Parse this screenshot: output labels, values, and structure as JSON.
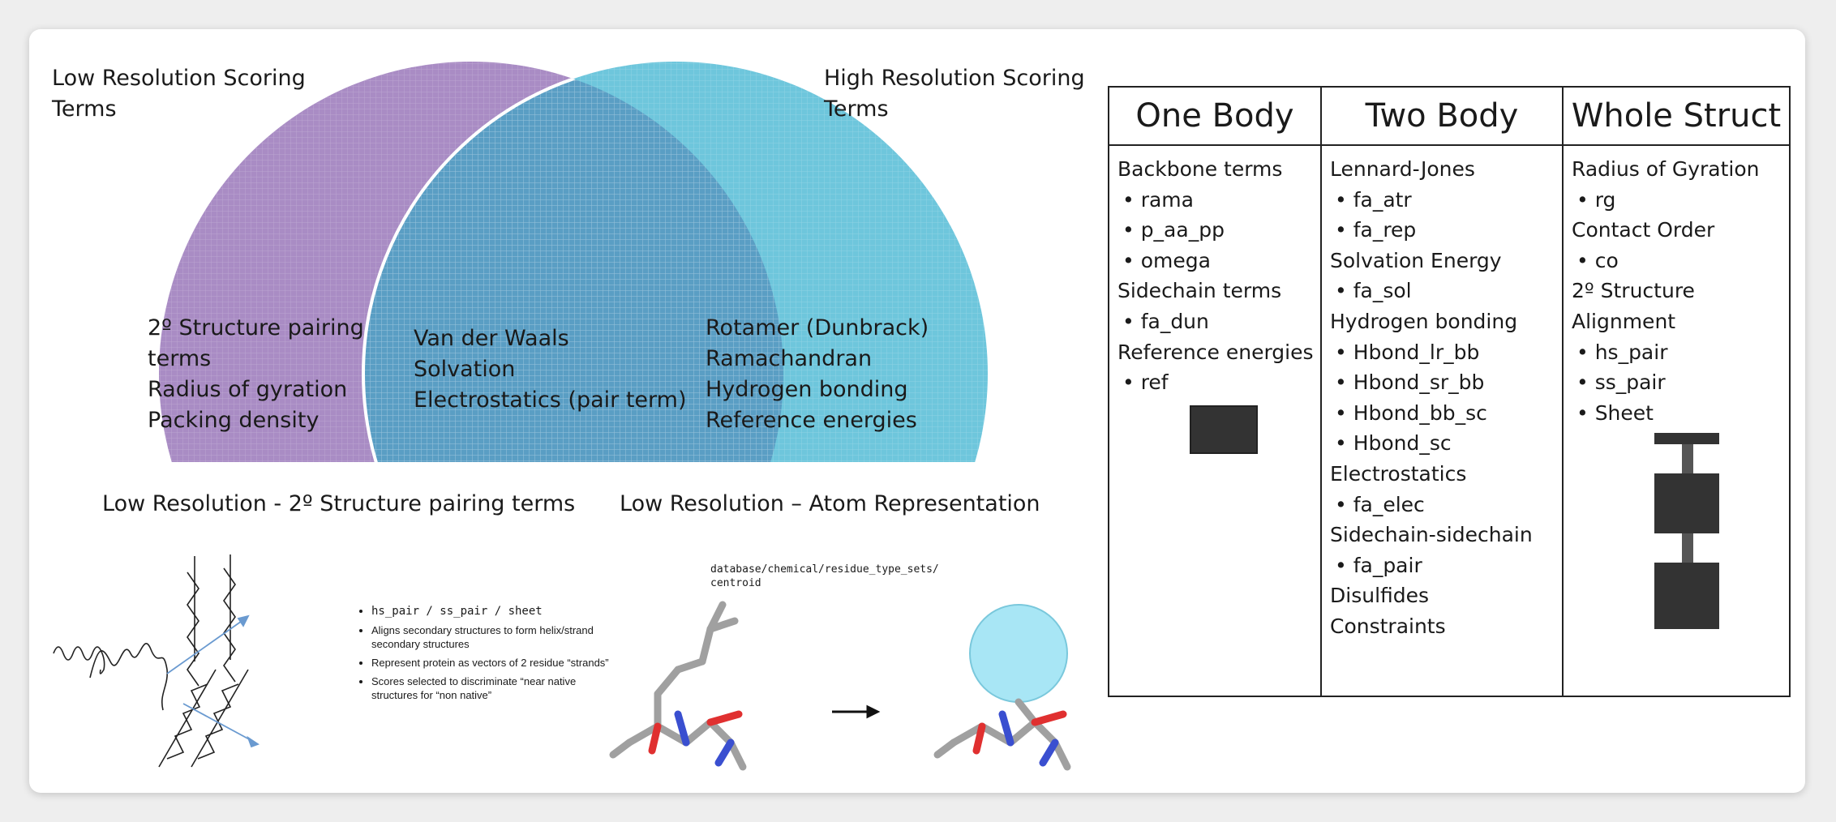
{
  "venn": {
    "left_title": [
      "Low Resolution Scoring",
      "Terms"
    ],
    "right_title": [
      "High Resolution Scoring",
      "Terms"
    ],
    "left_items": [
      "2º Structure pairing",
      "terms",
      "Radius of gyration",
      "Packing density"
    ],
    "center_items": [
      "Van der Waals",
      "Solvation",
      "Electrostatics (pair term)"
    ],
    "right_items": [
      "Rotamer (Dunbrack)",
      "Ramachandran",
      "Hydrogen bonding",
      "Reference energies"
    ],
    "colors": {
      "left": "#a98cc4",
      "right": "#6ec6dc",
      "overlap": "#5a9ec4"
    }
  },
  "pairing": {
    "title": "Low Resolution - 2º Structure pairing terms",
    "bullets": [
      "hs_pair / ss_pair / sheet",
      "Aligns secondary structures to form helix/strand secondary structures",
      "Represent protein as vectors of 2 residue “strands”",
      "Scores selected to discriminate “near native structures for “non native”"
    ]
  },
  "atom_rep": {
    "title": "Low Resolution – Atom Representation",
    "path": [
      "database/chemical/residue_type_sets/",
      "centroid"
    ],
    "centroid_color": "#a8e6f5"
  },
  "table": {
    "headers": [
      "One Body",
      "Two Body",
      "Whole Struct"
    ],
    "one_body": [
      {
        "text": "Backbone terms",
        "level": 0
      },
      {
        "text": "• rama",
        "level": 1
      },
      {
        "text": "• p_aa_pp",
        "level": 1
      },
      {
        "text": "• omega",
        "level": 1
      },
      {
        "text": "Sidechain terms",
        "level": 0
      },
      {
        "text": "• fa_dun",
        "level": 1
      },
      {
        "text": "Reference energies",
        "level": 0
      },
      {
        "text": "•   ref",
        "level": 1
      }
    ],
    "two_body": [
      {
        "text": "Lennard-Jones",
        "level": 0
      },
      {
        "text": "• fa_atr",
        "level": 1
      },
      {
        "text": "• fa_rep",
        "level": 1
      },
      {
        "text": "Solvation Energy",
        "level": 0
      },
      {
        "text": "• fa_sol",
        "level": 1
      },
      {
        "text": "Hydrogen bonding",
        "level": 0
      },
      {
        "text": "• Hbond_lr_bb",
        "level": 1
      },
      {
        "text": "• Hbond_sr_bb",
        "level": 1
      },
      {
        "text": "• Hbond_bb_sc",
        "level": 1
      },
      {
        "text": "• Hbond_sc",
        "level": 1
      },
      {
        "text": "Electrostatics",
        "level": 0
      },
      {
        "text": "• fa_elec",
        "level": 1
      },
      {
        "text": "Sidechain-sidechain",
        "level": 0
      },
      {
        "text": "• fa_pair",
        "level": 1
      },
      {
        "text": "Disulfides",
        "level": 0
      },
      {
        "text": "Constraints",
        "level": 0
      }
    ],
    "whole_struct": [
      {
        "text": "Radius of Gyration",
        "level": 0
      },
      {
        "text": "•   rg",
        "level": 1
      },
      {
        "text": "Contact Order",
        "level": 0
      },
      {
        "text": "• co",
        "level": 1
      },
      {
        "text": "2º Structure",
        "level": 0
      },
      {
        "text": "Alignment",
        "level": 0
      },
      {
        "text": "•   hs_pair",
        "level": 1
      },
      {
        "text": "•   ss_pair",
        "level": 1
      },
      {
        "text": "•   Sheet",
        "level": 1
      }
    ]
  }
}
